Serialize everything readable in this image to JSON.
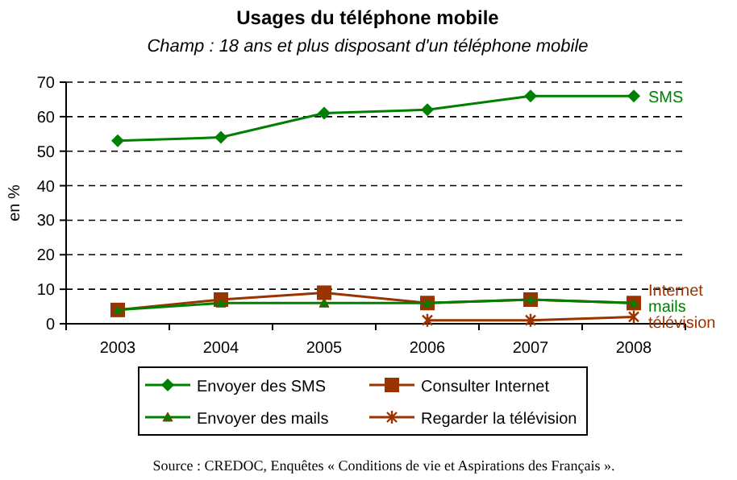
{
  "chart_data": {
    "type": "line",
    "title": "Usages du téléphone mobile",
    "subtitle": "Champ : 18 ans et plus disposant d'un téléphone mobile",
    "ylabel": "en %",
    "categories": [
      "2003",
      "2004",
      "2005",
      "2006",
      "2007",
      "2008"
    ],
    "series": [
      {
        "name": "Envoyer des SMS",
        "color": "#008000",
        "marker": "diamond",
        "values": [
          53,
          54,
          61,
          62,
          66,
          66
        ]
      },
      {
        "name": "Consulter Internet",
        "color": "#993300",
        "marker": "square",
        "values": [
          4,
          7,
          9,
          6,
          7,
          6
        ]
      },
      {
        "name": "Envoyer des mails",
        "color": "#008000",
        "marker": "triangle",
        "values": [
          4,
          6,
          6,
          6,
          7,
          6
        ]
      },
      {
        "name": "Regarder la télévision",
        "color": "#993300",
        "marker": "cross",
        "values": [
          null,
          null,
          null,
          1,
          1,
          2
        ]
      }
    ],
    "ylim": [
      0,
      70
    ],
    "yticks": [
      0,
      10,
      20,
      30,
      40,
      50,
      60,
      70
    ],
    "grid": "y",
    "legend": "bottom",
    "line_style": "solid",
    "annotations": [
      {
        "text": "SMS",
        "x": "2008",
        "y": 66
      },
      {
        "text": "Internet",
        "x": "2008",
        "y": 6
      },
      {
        "text": "mails",
        "x": "2008",
        "y": 6
      },
      {
        "text": "télévision",
        "x": "2008",
        "y": 2
      },
      "Source : CREDOC, Enquêtes « Conditions de vie et Aspirations des Français »."
    ]
  }
}
